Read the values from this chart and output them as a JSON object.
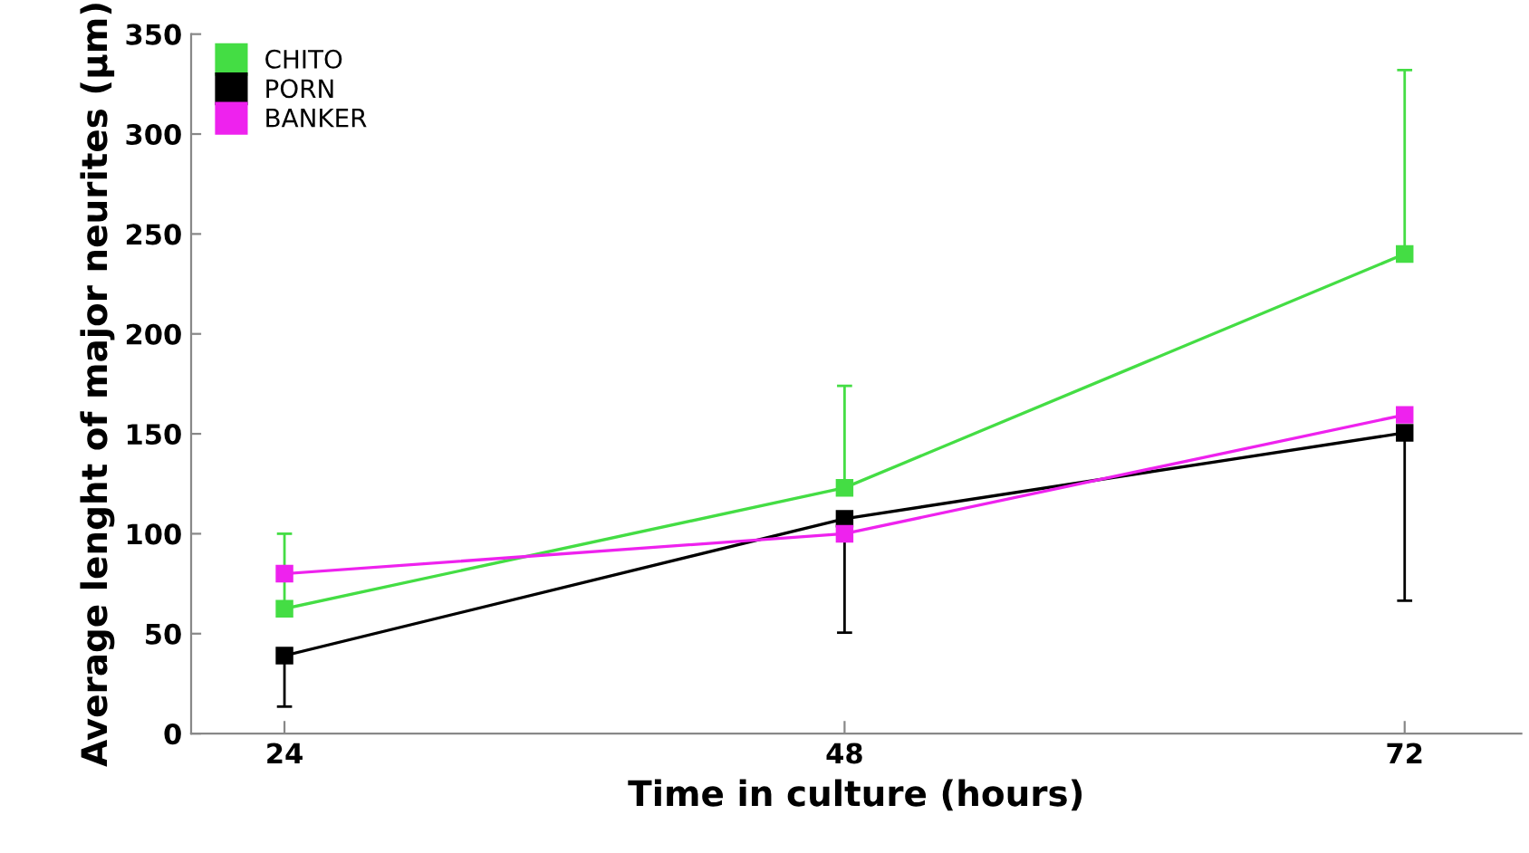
{
  "chart_data": {
    "type": "line",
    "xlabel": "Time in culture (hours)",
    "ylabel": "Average lenght of major neurites (µm)",
    "x": [
      24,
      48,
      72
    ],
    "series": [
      {
        "name": "CHITO",
        "color": "#44dd44",
        "values": [
          62.5,
          123,
          240
        ],
        "errors": [
          [
            62.5,
            100
          ],
          [
            123,
            174
          ],
          [
            240,
            332
          ]
        ]
      },
      {
        "name": "PORN",
        "color": "#000000",
        "values": [
          39,
          107.5,
          150.5
        ],
        "errors": [
          [
            13.5,
            39
          ],
          [
            50.5,
            107.5
          ],
          [
            66.5,
            150.5
          ]
        ]
      },
      {
        "name": "BANKER",
        "color": "#ee22ee",
        "values": [
          80,
          100,
          159.5
        ]
      }
    ],
    "xlim": [
      20,
      77
    ],
    "xticks": [
      24,
      48,
      72
    ],
    "ylim": [
      0,
      350
    ],
    "yticks": [
      0,
      50,
      100,
      150,
      200,
      250,
      300,
      350
    ],
    "grid": false,
    "legend": "top left",
    "marker": "square",
    "line_style": "solid"
  }
}
